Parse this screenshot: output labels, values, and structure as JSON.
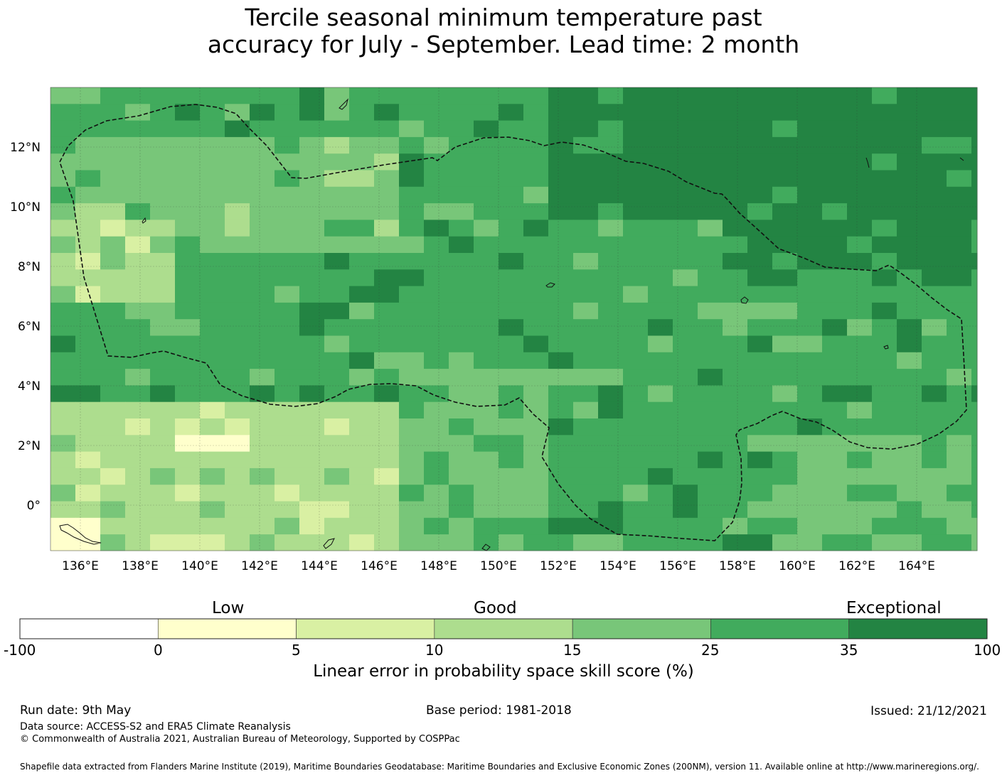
{
  "title": {
    "line1": "Tercile seasonal minimum temperature past",
    "line2": "accuracy for July - September. Lead time: 2 month"
  },
  "map": {
    "lon_labels": [
      "136°E",
      "138°E",
      "140°E",
      "142°E",
      "144°E",
      "146°E",
      "148°E",
      "150°E",
      "152°E",
      "154°E",
      "156°E",
      "158°E",
      "160°E",
      "162°E",
      "164°E"
    ],
    "lat_labels": [
      "12°N",
      "10°N",
      "8°N",
      "6°N",
      "4°N",
      "2°N",
      "0°"
    ],
    "lon_range": [
      135,
      166
    ],
    "lat_range": [
      -1.5,
      14
    ],
    "grid": true,
    "cell_size_deg": 0.83
  },
  "colorbar": {
    "categories": [
      "Low",
      "Good",
      "Exceptional"
    ],
    "ticks": [
      "-100",
      "0",
      "5",
      "10",
      "15",
      "25",
      "35",
      "100"
    ],
    "colors": [
      "#ffffff",
      "#ffffcc",
      "#d9f0a3",
      "#addd8e",
      "#78c679",
      "#41ab5d",
      "#238443"
    ],
    "label": "Linear error in probability space skill score (%)"
  },
  "footer": {
    "run_date": "Run date: 9th May",
    "base_period": "Base period: 1981-2018",
    "issued": "Issued: 21/12/2021",
    "data_source": "Data source: ACCESS-S2 and ERA5 Climate Reanalysis",
    "copyright": "© Commonwealth of Australia 2021, Australian Bureau of Meteorology, Supported by COSPPac",
    "shapefile": "Shapefile data extracted from Flanders Marine Institute (2019), Maritime Boundaries Geodatabase: Maritime Boundaries and Exclusive Economic Zones (200NM), version 11. Available online at http://www.marineregions.org/."
  }
}
